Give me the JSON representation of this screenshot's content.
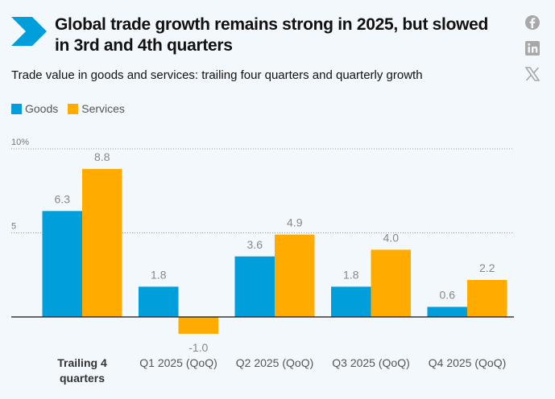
{
  "header": {
    "title": "Global trade growth remains strong in 2025, but slowed in 3rd and 4th quarters",
    "subtitle": "Trade value in goods and services: trailing four quarters and quarterly growth"
  },
  "share": [
    {
      "icon": "facebook-icon"
    },
    {
      "icon": "linkedin-icon"
    },
    {
      "icon": "x-icon"
    }
  ],
  "colors": {
    "goods": "#009fdb",
    "services": "#ffab00",
    "accent": "#009fdb"
  },
  "chart_data": {
    "type": "bar",
    "categories": [
      "Trailing 4 quarters",
      "Q1 2025 (QoQ)",
      "Q2 2025 (QoQ)",
      "Q3 2025 (QoQ)",
      "Q4 2025 (QoQ)"
    ],
    "series": [
      {
        "name": "Goods",
        "values": [
          6.3,
          1.8,
          3.6,
          1.8,
          0.6
        ]
      },
      {
        "name": "Services",
        "values": [
          8.8,
          -1.0,
          4.9,
          4.0,
          2.2
        ]
      }
    ],
    "yticks": [
      {
        "value": 10,
        "label": "10%"
      },
      {
        "value": 5,
        "label": "5"
      }
    ],
    "ylim": [
      -2,
      10
    ],
    "legend": "top-left",
    "grid": true
  }
}
